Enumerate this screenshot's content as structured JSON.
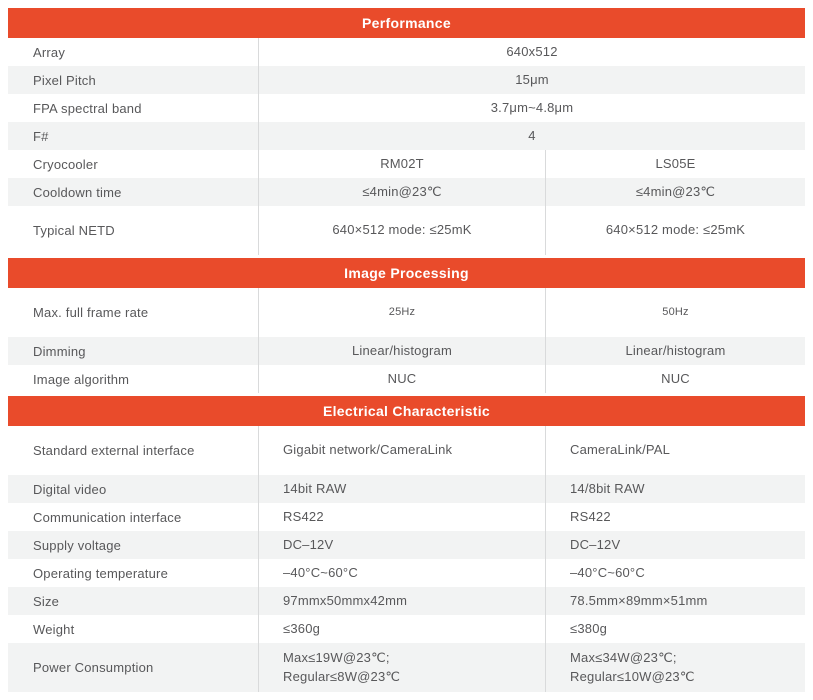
{
  "table": {
    "colors": {
      "accent": "#E94B2B",
      "shaded_row": "#F2F3F3",
      "divider": "#D9DADB",
      "text": "#58585A",
      "header_text": "#FFFFFF"
    },
    "sections": [
      {
        "title": "Performance",
        "value_align": "center",
        "rows": [
          {
            "label": "Array",
            "values": [
              "640x512"
            ],
            "shaded": false,
            "tall": false
          },
          {
            "label": "Pixel Pitch",
            "values": [
              "15μm"
            ],
            "shaded": true,
            "tall": false
          },
          {
            "label": "FPA spectral band",
            "values": [
              "3.7μm~4.8μm"
            ],
            "shaded": false,
            "tall": false
          },
          {
            "label": "F#",
            "values": [
              "4"
            ],
            "shaded": true,
            "tall": false
          },
          {
            "label": "Cryocooler",
            "values": [
              "RM02T",
              "LS05E"
            ],
            "shaded": false,
            "tall": false
          },
          {
            "label": "Cooldown time",
            "values": [
              "≤4min@23℃",
              "≤4min@23℃"
            ],
            "shaded": true,
            "tall": false
          },
          {
            "label": "Typical NETD",
            "values": [
              "640×512 mode: ≤25mK",
              "640×512 mode: ≤25mK"
            ],
            "shaded": false,
            "tall": true
          }
        ]
      },
      {
        "title": "Image Processing",
        "value_align": "center",
        "rows": [
          {
            "label": "Max. full frame rate",
            "values": [
              "25Hz",
              "50Hz"
            ],
            "shaded": false,
            "tall": true,
            "small_values": true
          },
          {
            "label": "Dimming",
            "values": [
              "Linear/histogram",
              "Linear/histogram"
            ],
            "shaded": true,
            "tall": false
          },
          {
            "label": "Image algorithm",
            "values": [
              "NUC",
              "NUC"
            ],
            "shaded": false,
            "tall": false
          }
        ]
      },
      {
        "title": "Electrical Characteristic",
        "value_align": "left",
        "rows": [
          {
            "label": "Standard external interface",
            "values": [
              "Gigabit network/CameraLink",
              "CameraLink/PAL"
            ],
            "shaded": false,
            "tall": true
          },
          {
            "label": "Digital video",
            "values": [
              "14bit RAW",
              "14/8bit RAW"
            ],
            "shaded": true,
            "tall": false
          },
          {
            "label": "Communication interface",
            "values": [
              "RS422",
              "RS422"
            ],
            "shaded": false,
            "tall": false
          },
          {
            "label": "Supply voltage",
            "values": [
              "DC–12V",
              "DC–12V"
            ],
            "shaded": true,
            "tall": false
          },
          {
            "label": "Operating temperature",
            "values": [
              "–40°C~60°C",
              "–40°C~60°C"
            ],
            "shaded": false,
            "tall": false
          },
          {
            "label": "Size",
            "values": [
              "97mmx50mmx42mm",
              "78.5mm×89mm×51mm"
            ],
            "shaded": true,
            "tall": false
          },
          {
            "label": "Weight",
            "values": [
              "≤360g",
              "≤380g"
            ],
            "shaded": false,
            "tall": false
          },
          {
            "label": "Power Consumption",
            "values": [
              "Max≤19W@23℃;\nRegular≤8W@23℃",
              "Max≤34W@23℃;\nRegular≤10W@23℃"
            ],
            "shaded": true,
            "tall": true
          }
        ]
      }
    ]
  }
}
